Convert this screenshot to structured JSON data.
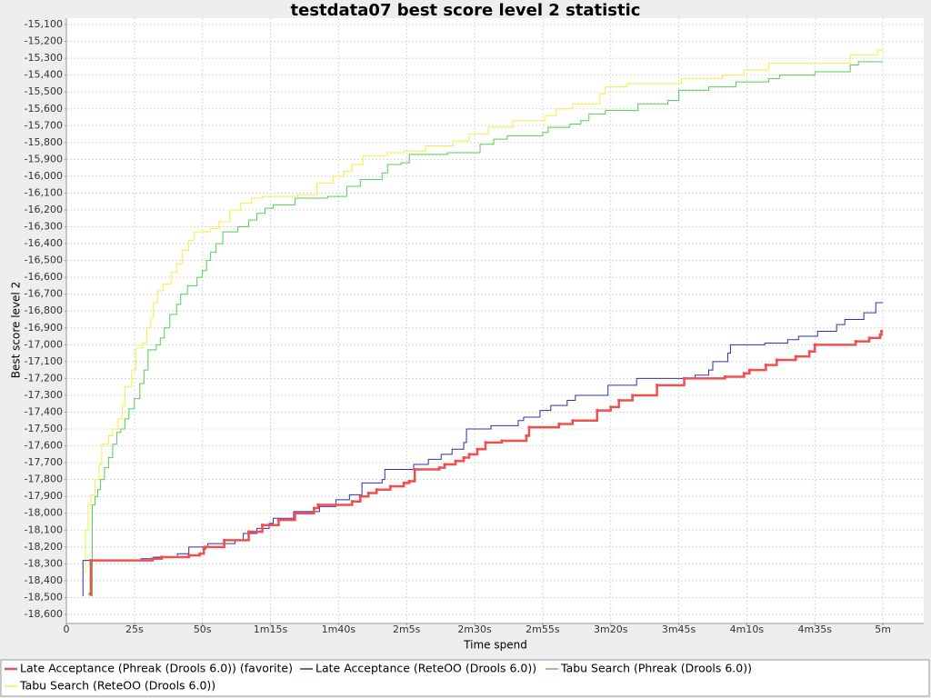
{
  "chart_data": {
    "type": "step",
    "title": "testdata07 best score level 2 statistic",
    "x_label": "Time spend",
    "y_label": "Best score level 2",
    "xlim": [
      0,
      315
    ],
    "ylim": [
      -18654,
      -15062
    ],
    "grid": true,
    "legend": "bottom",
    "xticks": [
      0,
      {
        "value": 25,
        "label": "25s"
      },
      {
        "value": 50,
        "label": "50s"
      },
      {
        "value": 75,
        "label": "1m15s"
      },
      {
        "value": 100,
        "label": "1m40s"
      },
      {
        "value": 125,
        "label": "2m5s"
      },
      {
        "value": 150,
        "label": "2m30s"
      },
      {
        "value": 175,
        "label": "2m55s"
      },
      {
        "value": 200,
        "label": "3m20s"
      },
      {
        "value": 225,
        "label": "3m45s"
      },
      {
        "value": 250,
        "label": "4m10s"
      },
      {
        "value": 275,
        "label": "4m35s"
      },
      {
        "value": 300,
        "label": "5m"
      }
    ],
    "yticks": [
      {
        "value": -15100,
        "label": "-15,100"
      },
      {
        "value": -15200,
        "label": "-15,200"
      },
      {
        "value": -15300,
        "label": "-15,300"
      },
      {
        "value": -15400,
        "label": "-15,400"
      },
      {
        "value": -15500,
        "label": "-15,500"
      },
      {
        "value": -15600,
        "label": "-15,600"
      },
      {
        "value": -15700,
        "label": "-15,700"
      },
      {
        "value": -15800,
        "label": "-15,800"
      },
      {
        "value": -15900,
        "label": "-15,900"
      },
      {
        "value": -16000,
        "label": "-16,000"
      },
      {
        "value": -16100,
        "label": "-16,100"
      },
      {
        "value": -16200,
        "label": "-16,200"
      },
      {
        "value": -16300,
        "label": "-16,300"
      },
      {
        "value": -16400,
        "label": "-16,400"
      },
      {
        "value": -16500,
        "label": "-16,500"
      },
      {
        "value": -16600,
        "label": "-16,600"
      },
      {
        "value": -16700,
        "label": "-16,700"
      },
      {
        "value": -16800,
        "label": "-16,800"
      },
      {
        "value": -16900,
        "label": "-16,900"
      },
      {
        "value": -17000,
        "label": "-17,000"
      },
      {
        "value": -17100,
        "label": "-17,100"
      },
      {
        "value": -17200,
        "label": "-17,200"
      },
      {
        "value": -17300,
        "label": "-17,300"
      },
      {
        "value": -17400,
        "label": "-17,400"
      },
      {
        "value": -17500,
        "label": "-17,500"
      },
      {
        "value": -17600,
        "label": "-17,600"
      },
      {
        "value": -17700,
        "label": "-17,700"
      },
      {
        "value": -17800,
        "label": "-17,800"
      },
      {
        "value": -17900,
        "label": "-17,900"
      },
      {
        "value": -18000,
        "label": "-18,000"
      },
      {
        "value": -18100,
        "label": "-18,100"
      },
      {
        "value": -18200,
        "label": "-18,200"
      },
      {
        "value": -18300,
        "label": "-18,300"
      },
      {
        "value": -18400,
        "label": "-18,400"
      },
      {
        "value": -18500,
        "label": "-18,500"
      },
      {
        "value": -18600,
        "label": "-18,600"
      }
    ],
    "series": [
      {
        "name": "Late Acceptance (Phreak (Drools 6.0)) (favorite)",
        "color": "#f05050",
        "width": 2.5,
        "markers": true,
        "x": [
          8.7,
          9,
          31.7,
          35,
          45,
          49,
          50.5,
          51,
          58,
          67,
          72,
          78,
          84,
          91,
          92.5,
          105,
          108,
          111,
          114,
          119,
          124,
          126,
          128,
          137,
          139,
          143,
          146,
          148,
          151,
          154,
          160,
          169,
          170,
          181,
          186,
          195,
          200,
          203,
          208,
          217,
          227,
          242,
          249,
          251,
          257,
          261,
          268,
          273,
          275,
          290,
          295,
          299,
          299.5
        ],
        "values": [
          -18480,
          -18280,
          -18270,
          -18260,
          -18250,
          -18240,
          -18210,
          -18200,
          -18160,
          -18110,
          -18070,
          -18040,
          -18000,
          -17970,
          -17950,
          -17930,
          -17900,
          -17880,
          -17860,
          -17840,
          -17820,
          -17810,
          -17740,
          -17730,
          -17710,
          -17690,
          -17670,
          -17650,
          -17620,
          -17580,
          -17570,
          -17540,
          -17490,
          -17470,
          -17450,
          -17390,
          -17370,
          -17330,
          -17300,
          -17240,
          -17200,
          -17190,
          -17170,
          -17150,
          -17120,
          -17090,
          -17070,
          -17040,
          -17000,
          -16980,
          -16960,
          -16940,
          -16920
        ]
      },
      {
        "name": "Late Acceptance (ReteOO (Drools 6.0))",
        "color": "#3030b0",
        "width": 1,
        "x": [
          6,
          6.1,
          27.4,
          32,
          40.8,
          45,
          52,
          62,
          65,
          70,
          74.5,
          76,
          83.5,
          93,
          99,
          104,
          108.6,
          116,
          117,
          127.6,
          133,
          137.7,
          141.7,
          146,
          147,
          156,
          166,
          168,
          174,
          178,
          184,
          187,
          199,
          209.5,
          231,
          236,
          237.5,
          243,
          244,
          256.6,
          265,
          269,
          276,
          283,
          286,
          293,
          297.4,
          300
        ],
        "values": [
          -18490,
          -18280,
          -18270,
          -18260,
          -18240,
          -18200,
          -18180,
          -18160,
          -18120,
          -18090,
          -18060,
          -18030,
          -17990,
          -17960,
          -17920,
          -17890,
          -17820,
          -17800,
          -17740,
          -17710,
          -17680,
          -17650,
          -17620,
          -17580,
          -17500,
          -17480,
          -17450,
          -17430,
          -17390,
          -17360,
          -17330,
          -17300,
          -17240,
          -17200,
          -17180,
          -17150,
          -17100,
          -17050,
          -17000,
          -16990,
          -16970,
          -16950,
          -16920,
          -16880,
          -16850,
          -16810,
          -16750,
          -16750
        ]
      },
      {
        "name": "Tabu Search (Phreak (Drools 6.0))",
        "color": "#50d050",
        "width": 1,
        "x": [
          8.7,
          9.5,
          10.5,
          11.5,
          12.5,
          14,
          15.5,
          17,
          18.5,
          20,
          21.5,
          23,
          25,
          27,
          28.5,
          30,
          33,
          34.5,
          36,
          38,
          40.5,
          42,
          44.5,
          48,
          50,
          51.5,
          53,
          55,
          57.5,
          63,
          67,
          70,
          73,
          76,
          84,
          96,
          103,
          108,
          116,
          118,
          123,
          126,
          140,
          152,
          157,
          162,
          175,
          177,
          185,
          189,
          192,
          198,
          210,
          221,
          225,
          236,
          246,
          258,
          262,
          275,
          288,
          291,
          300
        ],
        "values": [
          -18490,
          -17950,
          -17900,
          -17860,
          -17800,
          -17730,
          -17670,
          -17590,
          -17520,
          -17500,
          -17440,
          -17380,
          -17320,
          -17230,
          -17150,
          -17030,
          -17000,
          -16960,
          -16900,
          -16820,
          -16760,
          -16700,
          -16650,
          -16600,
          -16560,
          -16500,
          -16450,
          -16400,
          -16330,
          -16300,
          -16260,
          -16220,
          -16190,
          -16170,
          -16130,
          -16120,
          -16060,
          -16020,
          -15980,
          -15930,
          -15920,
          -15870,
          -15860,
          -15810,
          -15780,
          -15760,
          -15740,
          -15710,
          -15690,
          -15670,
          -15630,
          -15610,
          -15570,
          -15550,
          -15490,
          -15470,
          -15440,
          -15420,
          -15400,
          -15380,
          -15340,
          -15320,
          -15320
        ]
      },
      {
        "name": "Tabu Search (ReteOO (Drools 6.0))",
        "color": "#f0f040",
        "width": 1,
        "x": [
          6,
          7,
          8,
          9,
          10.5,
          12,
          13,
          15.5,
          17,
          19,
          20.5,
          21.5,
          24,
          25.5,
          28,
          29.5,
          31,
          32,
          33.5,
          35.5,
          38.5,
          40.5,
          42.5,
          45,
          47,
          53,
          56,
          60,
          64,
          68,
          72,
          85,
          92,
          98,
          102,
          105,
          109,
          118,
          124,
          132,
          142,
          148,
          155,
          164,
          176,
          180,
          186,
          196,
          198,
          206,
          226,
          241,
          249,
          258,
          288,
          298,
          300
        ],
        "values": [
          -18350,
          -18100,
          -17950,
          -17890,
          -17800,
          -17710,
          -17590,
          -17540,
          -17500,
          -17440,
          -17360,
          -17250,
          -17150,
          -17020,
          -16990,
          -16900,
          -16840,
          -16750,
          -16680,
          -16640,
          -16570,
          -16520,
          -16440,
          -16380,
          -16330,
          -16310,
          -16270,
          -16200,
          -16160,
          -16130,
          -16120,
          -16110,
          -16040,
          -16000,
          -15970,
          -15930,
          -15880,
          -15860,
          -15850,
          -15820,
          -15790,
          -15750,
          -15710,
          -15670,
          -15640,
          -15600,
          -15570,
          -15510,
          -15470,
          -15450,
          -15420,
          -15400,
          -15370,
          -15330,
          -15280,
          -15250,
          -15250
        ]
      }
    ]
  }
}
